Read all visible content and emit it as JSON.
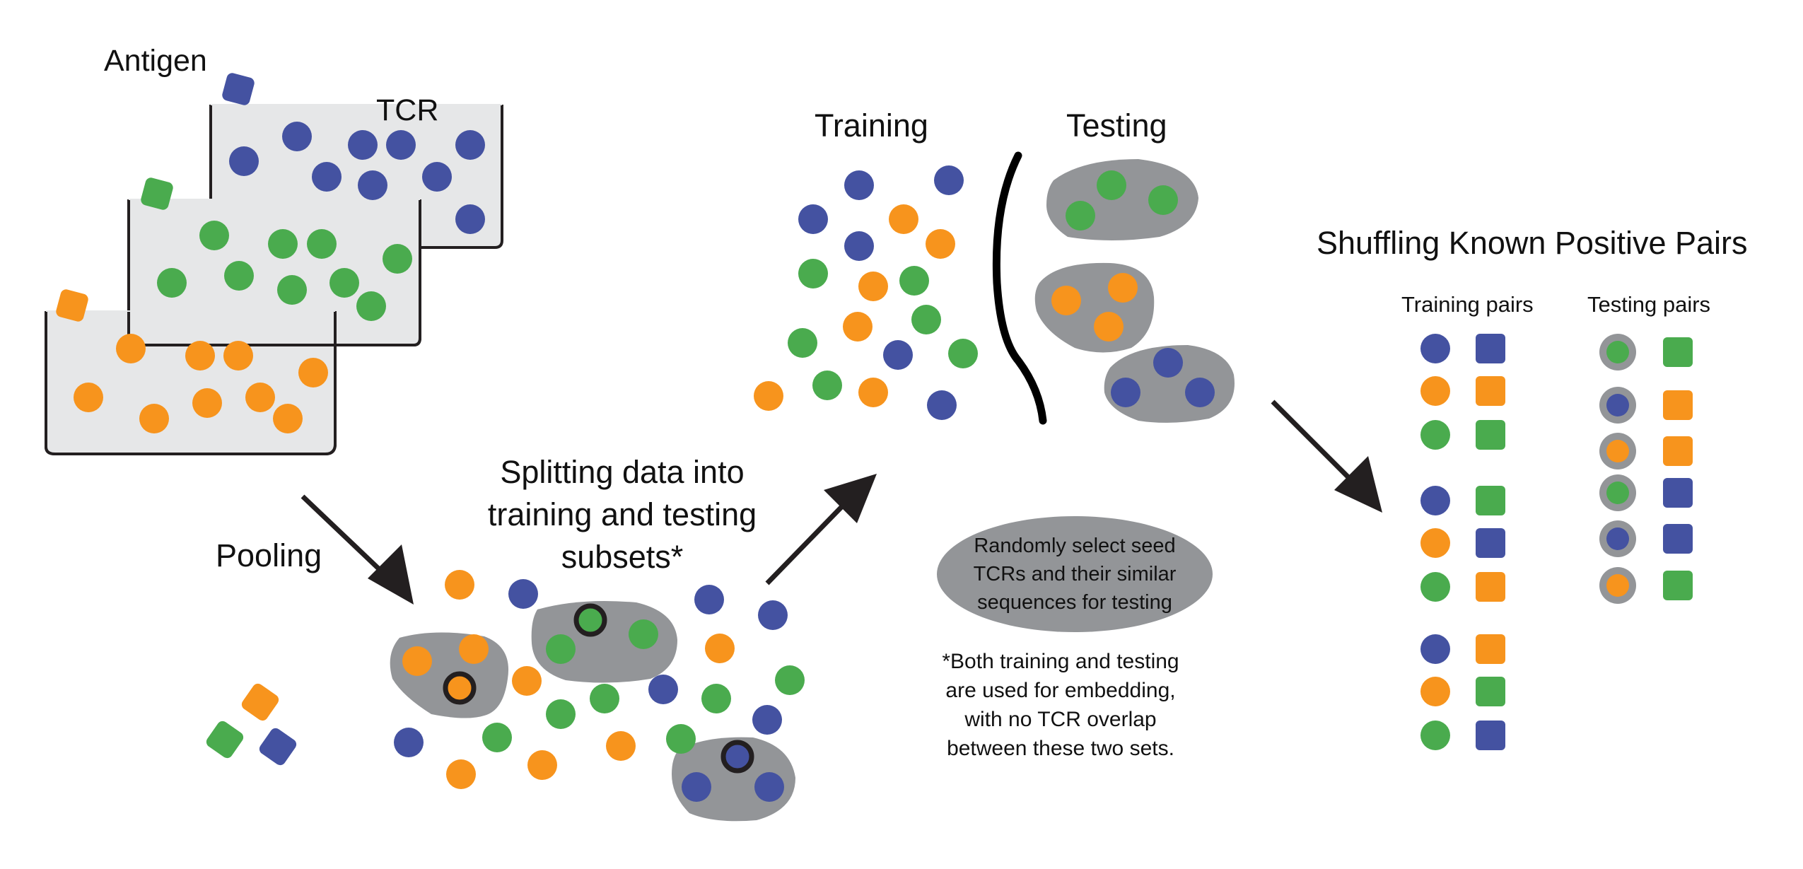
{
  "colors": {
    "blue": "#4452a1",
    "green": "#4aab4e",
    "orange": "#f7941d",
    "tray_fill": "#e6e7e8",
    "cluster_fill": "#939598",
    "arrow": "#231f20"
  },
  "labels": {
    "antigen": "Antigen",
    "tcr": "TCR",
    "pooling": "Pooling",
    "splitting_l1": "Splitting data into",
    "splitting_l2": "training and testing",
    "splitting_l3": "subsets*",
    "training": "Training",
    "testing": "Testing",
    "oval_l1": "Randomly select seed",
    "oval_l2": "TCRs and their similar",
    "oval_l3": "sequences for testing",
    "note_l1": "*Both training and testing",
    "note_l2": "are used for embedding,",
    "note_l3": "with no TCR overlap",
    "note_l4": "between these two sets.",
    "shuffling_title": "Shuffling Known Positive Pairs",
    "training_pairs": "Training pairs",
    "testing_pairs": "Testing pairs"
  },
  "training_pairs": [
    [
      "blue",
      "blue"
    ],
    [
      "orange",
      "orange"
    ],
    [
      "green",
      "green"
    ],
    [
      "blue",
      "green"
    ],
    [
      "orange",
      "blue"
    ],
    [
      "green",
      "orange"
    ],
    [
      "blue",
      "orange"
    ],
    [
      "orange",
      "green"
    ],
    [
      "green",
      "blue"
    ]
  ],
  "testing_pairs": [
    [
      "green",
      "green"
    ],
    [
      "blue",
      "orange"
    ],
    [
      "orange",
      "orange"
    ],
    [
      "green",
      "blue"
    ],
    [
      "blue",
      "blue"
    ],
    [
      "orange",
      "green"
    ]
  ]
}
